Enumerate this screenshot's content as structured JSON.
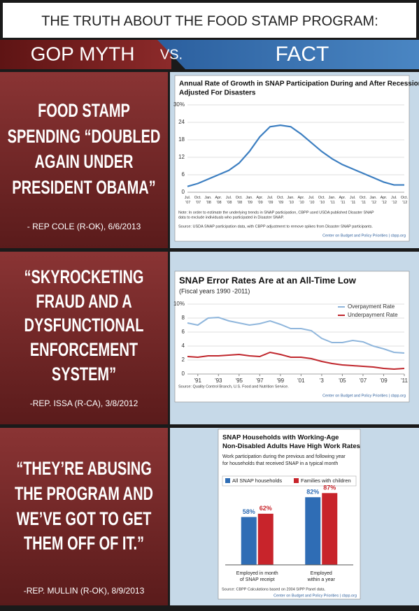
{
  "header": {
    "title": "THE TRUTH ABOUT THE FOOD STAMP PROGRAM:",
    "left": "GOP MYTH",
    "middle": "VS.",
    "right": "FACT"
  },
  "panels": [
    {
      "quote": [
        "FOOD STAMP",
        "SPENDING “DOUBLED",
        "AGAIN UNDER",
        "PRESIDENT OBAMA”"
      ],
      "attribution": "- REP COLE (R-OK), 6/6/2013"
    },
    {
      "quote": [
        "“SKYROCKETING",
        "FRAUD AND A",
        "DYSFUNCTIONAL",
        "ENFORCEMENT",
        "SYSTEM”"
      ],
      "attribution": "-REP. ISSA (R-CA), 3/8/2012"
    },
    {
      "quote": [
        "“THEY’RE ABUSING",
        "THE PROGRAM AND",
        "WE’VE GOT TO GET",
        "THEM OFF OF IT.”"
      ],
      "attribution": "-REP. MULLIN (R-OK), 8/9/2013"
    }
  ],
  "chart_data": [
    {
      "type": "line",
      "title": [
        "Annual Rate of Growth in SNAP Participation During and After Recession,",
        "Adjusted For Disasters"
      ],
      "categories": [
        "Jul. '07",
        "Oct. '07",
        "Jan. '08",
        "Apr. '08",
        "Jul. '08",
        "Oct. '08",
        "Jan. '09",
        "Apr. '09",
        "Jul. '09",
        "Oct. '09",
        "Jan. '10",
        "Apr. '10",
        "Jul. '10",
        "Oct. '10",
        "Jan. '11",
        "Apr. '11",
        "Jul. '11",
        "Oct. '11",
        "Jan. '12",
        "Apr. '12",
        "Jul. '12",
        "Oct. '12"
      ],
      "values": [
        2,
        3,
        4.5,
        6,
        7.5,
        10,
        14,
        19,
        22.5,
        23,
        22.5,
        20,
        17,
        14,
        11.5,
        9.5,
        8,
        6.5,
        5,
        3.5,
        2.5,
        2.5
      ],
      "color": "#3d7fc1",
      "ylim": [
        0,
        30
      ],
      "yticks": [
        0,
        6,
        12,
        18,
        24,
        {
          "value": 30,
          "label": "30%"
        }
      ],
      "grid": true,
      "notes": [
        "Note: In order to estimate the underlying trends in SNAP participation, CBPP used USDA published Disaster SNAP",
        "data to exclude individuals who participated in Disaster SNAP."
      ],
      "source": "Source: USDA SNAP participation data, with CBPP adjustment to remove spikes from Disaster SNAP participants.",
      "credit": "Center on Budget and Policy Priorities | cbpp.org"
    },
    {
      "type": "line",
      "title": [
        "SNAP Error Rates Are at an All-Time Low"
      ],
      "subtitle": "(Fiscal years 1990 -2011)",
      "x": [
        1990,
        1991,
        1992,
        1993,
        1994,
        1995,
        1996,
        1997,
        1998,
        1999,
        2000,
        2001,
        2002,
        2003,
        2004,
        2005,
        2006,
        2007,
        2008,
        2009,
        2010,
        2011
      ],
      "series": [
        {
          "name": "Overpayment Rate",
          "color": "#8fb6dc",
          "values": [
            7.3,
            7.0,
            8.0,
            8.1,
            7.6,
            7.3,
            7.0,
            7.2,
            7.6,
            7.1,
            6.5,
            6.5,
            6.2,
            5.1,
            4.5,
            4.5,
            4.8,
            4.6,
            4.0,
            3.6,
            3.1,
            3.0
          ]
        },
        {
          "name": "Underpayment Rate",
          "color": "#c0272d",
          "values": [
            2.5,
            2.4,
            2.6,
            2.6,
            2.7,
            2.8,
            2.6,
            2.5,
            3.1,
            2.8,
            2.4,
            2.4,
            2.2,
            1.8,
            1.5,
            1.3,
            1.2,
            1.1,
            1.0,
            0.8,
            0.7,
            0.8
          ]
        }
      ],
      "xlim": [
        1990,
        2011
      ],
      "xticks": [
        {
          "value": 1991,
          "label": "'91"
        },
        {
          "value": 1993,
          "label": "'93"
        },
        {
          "value": 1995,
          "label": "'95"
        },
        {
          "value": 1997,
          "label": "'97"
        },
        {
          "value": 1999,
          "label": "'99"
        },
        {
          "value": 2001,
          "label": "'01"
        },
        {
          "value": 2003,
          "label": "'3"
        },
        {
          "value": 2005,
          "label": "'05"
        },
        {
          "value": 2007,
          "label": "'07"
        },
        {
          "value": 2009,
          "label": "'09"
        },
        {
          "value": 2011,
          "label": "'11"
        }
      ],
      "ylim": [
        0,
        10
      ],
      "yticks": [
        0,
        2,
        4,
        6,
        8,
        {
          "value": 10,
          "label": "10%"
        }
      ],
      "grid": true,
      "legend": "top-right",
      "source": "Source: Quality Control Branch, U.S. Food and Nutrition Service.",
      "credit": "Center on Budget and Policy Priorities | cbpp.org"
    },
    {
      "type": "bar",
      "title": [
        "SNAP Households with Working-Age",
        "Non-Disabled Adults Have High Work Rates"
      ],
      "subtitle": [
        "Work participation during the previous and following year",
        "for households that received SNAP in a typical month"
      ],
      "categories": [
        [
          "Employed in month",
          "of SNAP receipt"
        ],
        [
          "Employed",
          "within a year"
        ]
      ],
      "series": [
        {
          "name": "All SNAP households",
          "color": "#2f6db5",
          "values": [
            58,
            82
          ],
          "value_labels": [
            "58%",
            "82%"
          ]
        },
        {
          "name": "Families with children",
          "color": "#c8242b",
          "values": [
            62,
            87
          ],
          "value_labels": [
            "62%",
            "87%"
          ]
        }
      ],
      "ylim": [
        0,
        100
      ],
      "legend": "top",
      "source": "Source: CBPP Calculations based on 2004 SIPP Panel data.",
      "credit": "Center on Budget and Policy Priorities | cbpp.org"
    }
  ]
}
